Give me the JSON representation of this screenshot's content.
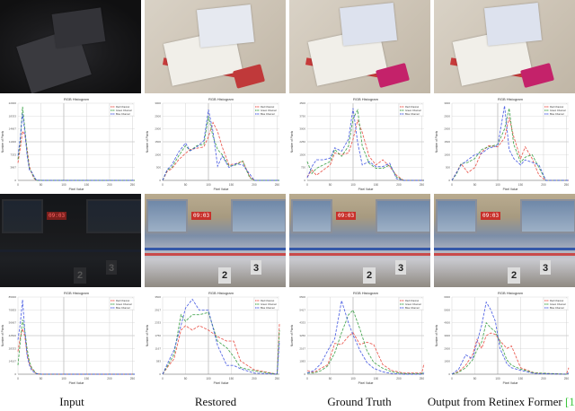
{
  "figure": {
    "columns": [
      {
        "caption": "Input"
      },
      {
        "caption": "Restored"
      },
      {
        "caption": "Ground Truth"
      },
      {
        "caption": "Output from Retinex Former ",
        "citation": "[1]"
      }
    ],
    "rows": [
      {
        "scene": "book-desk",
        "photo_brightness": [
          "very dark",
          "bright",
          "bright",
          "bright"
        ]
      },
      {
        "scene": "swimming-pool",
        "photo_brightness": [
          "very dark",
          "bright",
          "bright",
          "bright"
        ],
        "clock_text": "09:03"
      }
    ],
    "colors": {
      "red": "#e8443a",
      "green": "#2e9a3a",
      "blue": "#3a4fe0",
      "citation": "#3bc43b",
      "grid": "#c8c8c8"
    }
  },
  "chart_data": [
    {
      "type": "line",
      "panel": "row1-input",
      "title": "RGB Histogram",
      "xlabel": "Pixel Value",
      "ylabel": "Number of Pixels",
      "xlim": [
        0,
        255
      ],
      "ylim": [
        0,
        22000
      ],
      "xticks": [
        0,
        50,
        100,
        150,
        200,
        250
      ],
      "legend": [
        "Red Channel",
        "Green Channel",
        "Blue Channel"
      ],
      "legend_position": "upper right",
      "x": [
        0,
        5,
        10,
        15,
        20,
        25,
        30,
        35,
        40,
        50,
        100,
        150,
        200,
        255
      ],
      "series": [
        {
          "name": "Red Channel",
          "values": [
            5000,
            9000,
            14000,
            13000,
            9000,
            4000,
            2000,
            600,
            0,
            0,
            0,
            0,
            0,
            0
          ]
        },
        {
          "name": "Green Channel",
          "values": [
            6000,
            11000,
            21000,
            15000,
            8000,
            3500,
            2200,
            800,
            0,
            0,
            0,
            0,
            0,
            0
          ]
        },
        {
          "name": "Blue Channel",
          "values": [
            7000,
            12000,
            19000,
            14000,
            7000,
            3000,
            2400,
            1200,
            100,
            0,
            0,
            0,
            0,
            0
          ]
        }
      ]
    },
    {
      "type": "line",
      "panel": "row1-restored",
      "title": "RGB Histogram",
      "xlabel": "Pixel Value",
      "ylabel": "Number of Pixels",
      "xlim": [
        0,
        255
      ],
      "ylim": [
        0,
        3000
      ],
      "xticks": [
        0,
        50,
        100,
        150,
        200,
        250
      ],
      "legend": [
        "Red Channel",
        "Green Channel",
        "Blue Channel"
      ],
      "legend_position": "upper right",
      "x": [
        0,
        10,
        20,
        35,
        50,
        60,
        75,
        90,
        100,
        110,
        120,
        130,
        145,
        160,
        175,
        190,
        200,
        255
      ],
      "series": [
        {
          "name": "Red Channel",
          "values": [
            0,
            350,
            450,
            800,
            1050,
            1200,
            1250,
            1300,
            1700,
            2250,
            1900,
            1300,
            600,
            650,
            750,
            150,
            0,
            0
          ]
        },
        {
          "name": "Green Channel",
          "values": [
            0,
            400,
            500,
            950,
            1350,
            1150,
            1350,
            1400,
            2500,
            1700,
            1200,
            1000,
            550,
            600,
            750,
            100,
            0,
            0
          ]
        },
        {
          "name": "Blue Channel",
          "values": [
            0,
            420,
            600,
            1100,
            1450,
            1150,
            1300,
            1550,
            2750,
            1900,
            550,
            950,
            500,
            650,
            600,
            250,
            0,
            0
          ]
        }
      ]
    },
    {
      "type": "line",
      "panel": "row1-ground-truth",
      "title": "RGB Histogram",
      "xlabel": "Pixel Value",
      "ylabel": "Number of Pixels",
      "xlim": [
        0,
        255
      ],
      "ylim": [
        0,
        4500
      ],
      "xticks": [
        0,
        50,
        100,
        150,
        200,
        250
      ],
      "legend": [
        "Red Channel",
        "Green Channel",
        "Blue Channel"
      ],
      "legend_position": "upper right",
      "x": [
        0,
        10,
        20,
        35,
        50,
        60,
        75,
        90,
        100,
        110,
        120,
        135,
        150,
        165,
        180,
        195,
        210,
        255
      ],
      "series": [
        {
          "name": "Red Channel",
          "values": [
            200,
            600,
            300,
            600,
            900,
            1600,
            1500,
            1600,
            2400,
            3500,
            2800,
            1400,
            900,
            1200,
            800,
            300,
            0,
            0
          ]
        },
        {
          "name": "Green Channel",
          "values": [
            1100,
            400,
            700,
            900,
            1100,
            1800,
            1400,
            2000,
            3600,
            4100,
            2000,
            1000,
            700,
            700,
            900,
            200,
            0,
            0
          ]
        },
        {
          "name": "Blue Channel",
          "values": [
            150,
            800,
            1200,
            1200,
            1300,
            1900,
            1700,
            2400,
            4200,
            2200,
            900,
            1100,
            800,
            800,
            1000,
            100,
            0,
            0
          ]
        }
      ]
    },
    {
      "type": "line",
      "panel": "row1-retinexformer",
      "title": "RGB Histogram",
      "xlabel": "Pixel Value",
      "ylabel": "Number of Pixels",
      "xlim": [
        0,
        255
      ],
      "ylim": [
        0,
        3000
      ],
      "xticks": [
        0,
        50,
        100,
        150,
        200,
        250
      ],
      "legend": [
        "Red Channel",
        "Green Channel",
        "Blue Channel"
      ],
      "legend_position": "upper right",
      "x": [
        0,
        10,
        20,
        35,
        50,
        65,
        80,
        100,
        115,
        125,
        135,
        150,
        160,
        175,
        190,
        205,
        255
      ],
      "series": [
        {
          "name": "Red Channel",
          "values": [
            0,
            300,
            650,
            300,
            500,
            1100,
            1350,
            1300,
            1650,
            2450,
            1700,
            850,
            1300,
            850,
            200,
            0,
            0
          ]
        },
        {
          "name": "Green Channel",
          "values": [
            0,
            250,
            650,
            700,
            850,
            1200,
            1300,
            1400,
            2000,
            2800,
            1400,
            700,
            900,
            1000,
            500,
            0,
            0
          ]
        },
        {
          "name": "Blue Channel",
          "values": [
            0,
            300,
            600,
            800,
            1000,
            1050,
            1250,
            1350,
            2900,
            1200,
            850,
            600,
            800,
            700,
            600,
            0,
            0
          ]
        }
      ]
    },
    {
      "type": "line",
      "panel": "row2-input",
      "title": "RGB Histogram",
      "xlabel": "Pixel Value",
      "ylabel": "Number of Pixels",
      "xlim": [
        0,
        255
      ],
      "ylim": [
        0,
        85000
      ],
      "xticks": [
        0,
        50,
        100,
        150,
        200,
        250
      ],
      "legend": [
        "Red Channel",
        "Green Channel",
        "Blue Channel"
      ],
      "legend_position": "upper right",
      "x": [
        0,
        5,
        10,
        15,
        20,
        25,
        30,
        40,
        50,
        100,
        150,
        200,
        255
      ],
      "series": [
        {
          "name": "Red Channel",
          "values": [
            25000,
            40000,
            50000,
            42000,
            22000,
            12000,
            6000,
            500,
            0,
            0,
            0,
            0,
            0
          ]
        },
        {
          "name": "Green Channel",
          "values": [
            10000,
            35000,
            60000,
            48000,
            28000,
            14000,
            7000,
            800,
            0,
            0,
            0,
            0,
            0
          ]
        },
        {
          "name": "Blue Channel",
          "values": [
            38000,
            55000,
            82000,
            48000,
            20000,
            10000,
            4000,
            600,
            100,
            0,
            0,
            0,
            0
          ]
        }
      ]
    },
    {
      "type": "line",
      "panel": "row2-restored",
      "title": "RGB Histogram",
      "xlabel": "Pixel Value",
      "ylabel": "Number of Pixels",
      "xlim": [
        0,
        255
      ],
      "ylim": [
        0,
        3500
      ],
      "xticks": [
        0,
        50,
        100,
        150,
        200,
        250
      ],
      "legend": [
        "Red Channel",
        "Green Channel",
        "Blue Channel"
      ],
      "legend_position": "upper right",
      "x": [
        0,
        10,
        25,
        40,
        50,
        65,
        80,
        100,
        120,
        140,
        155,
        170,
        200,
        250,
        255
      ],
      "series": [
        {
          "name": "Red Channel",
          "values": [
            0,
            300,
            700,
            2000,
            2200,
            2000,
            2200,
            2000,
            1700,
            1500,
            1500,
            600,
            200,
            0,
            2300
          ]
        },
        {
          "name": "Green Channel",
          "values": [
            0,
            350,
            900,
            2700,
            2400,
            2700,
            2700,
            2800,
            1500,
            1200,
            800,
            300,
            150,
            0,
            2000
          ]
        },
        {
          "name": "Blue Channel",
          "values": [
            0,
            450,
            1100,
            2200,
            3000,
            3400,
            2900,
            2900,
            1300,
            400,
            400,
            250,
            50,
            0,
            1500
          ]
        }
      ]
    },
    {
      "type": "line",
      "panel": "row2-ground-truth",
      "title": "RGB Histogram",
      "xlabel": "Pixel Value",
      "ylabel": "Number of Pixels",
      "xlim": [
        0,
        255
      ],
      "ylim": [
        0,
        6500
      ],
      "xticks": [
        0,
        50,
        100,
        150,
        200,
        250
      ],
      "legend": [
        "Red Channel",
        "Green Channel",
        "Blue Channel"
      ],
      "legend_position": "upper right",
      "x": [
        0,
        15,
        30,
        45,
        60,
        75,
        90,
        100,
        115,
        130,
        145,
        165,
        185,
        210,
        250,
        255
      ],
      "series": [
        {
          "name": "Red Channel",
          "values": [
            300,
            150,
            500,
            800,
            2600,
            2500,
            3200,
            3500,
            2500,
            2700,
            2500,
            800,
            300,
            100,
            100,
            900
          ]
        },
        {
          "name": "Green Channel",
          "values": [
            100,
            100,
            300,
            700,
            1800,
            3500,
            5000,
            5400,
            3800,
            2000,
            1000,
            500,
            200,
            50,
            50,
            200
          ]
        },
        {
          "name": "Blue Channel",
          "values": [
            100,
            300,
            900,
            2000,
            3000,
            6200,
            4300,
            3300,
            2000,
            1000,
            500,
            200,
            50,
            0,
            0,
            100
          ]
        }
      ]
    },
    {
      "type": "line",
      "panel": "row2-retinexformer",
      "title": "RGB Histogram",
      "xlabel": "Pixel Value",
      "ylabel": "Number of Pixels",
      "xlim": [
        0,
        255
      ],
      "ylim": [
        0,
        6000
      ],
      "xticks": [
        0,
        50,
        100,
        150,
        200,
        250
      ],
      "legend": [
        "Red Channel",
        "Green Channel",
        "Blue Channel"
      ],
      "legend_position": "upper right",
      "x": [
        0,
        15,
        30,
        45,
        55,
        65,
        75,
        85,
        95,
        105,
        120,
        130,
        150,
        180,
        250,
        255
      ],
      "series": [
        {
          "name": "Red Channel",
          "values": [
            0,
            200,
            700,
            1500,
            2700,
            2000,
            3000,
            3200,
            3100,
            2600,
            2000,
            2200,
            500,
            100,
            0,
            500
          ]
        },
        {
          "name": "Green Channel",
          "values": [
            0,
            150,
            500,
            1100,
            1900,
            2500,
            4000,
            3600,
            3300,
            2500,
            1100,
            700,
            400,
            100,
            0,
            100
          ]
        },
        {
          "name": "Blue Channel",
          "values": [
            0,
            400,
            1500,
            1200,
            2500,
            3800,
            5600,
            5000,
            4100,
            2000,
            800,
            500,
            300,
            50,
            0,
            100
          ]
        }
      ]
    }
  ]
}
